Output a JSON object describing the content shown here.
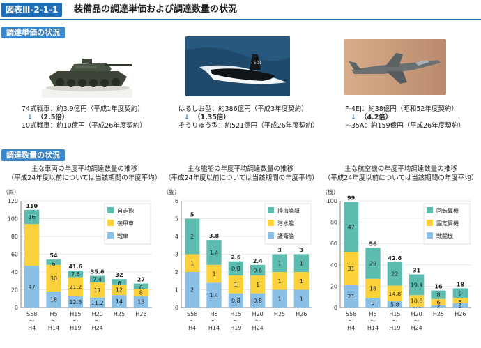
{
  "figure": {
    "tag": "図表Ⅲ-2-1-1",
    "title": "装備品の調達単価および調達数量の状況"
  },
  "unit_price_section": {
    "label": "調達単価の状況",
    "items": [
      {
        "line1": "74式戦車：約3.9億円（平成1年度契約）",
        "ratio": "（2.5倍）",
        "line2": "10式戦車：約10億円（平成26年度契約）"
      },
      {
        "line1": "はるしお型：約386億円（平成3年度契約）",
        "ratio": "（1.35倍）",
        "line2": "そうりゅう型：約521億円（平成26年度契約）"
      },
      {
        "line1": "F-4EJ：約38億円（昭和52年度契約）",
        "ratio": "（4.2倍）",
        "line2": "F-35A：約159億円（平成26年度契約）"
      }
    ],
    "arrow": "↓"
  },
  "quantity_section": {
    "label": "調達数量の状況"
  },
  "colors": {
    "teal": "#5dbcb0",
    "yellow": "#fbd13b",
    "blue": "#8ac0e6",
    "brand": "#1e6db5",
    "label_bg": "#3a86c8"
  },
  "chart_data": [
    {
      "type": "bar",
      "stacked": true,
      "title": "主な車両の年度平均調達数量の推移",
      "subtitle": "（平成24年度以前については当該期間の年度平均）",
      "ylabel": "（両）",
      "ylim": [
        0,
        120
      ],
      "yticks": [
        0,
        20,
        40,
        60,
        80,
        100,
        120
      ],
      "categories": [
        [
          "S58",
          "〜",
          "H4"
        ],
        [
          "H5",
          "〜",
          "H14"
        ],
        [
          "H15",
          "〜",
          "H19"
        ],
        [
          "H20",
          "〜",
          "H24"
        ],
        [
          "H25"
        ],
        [
          "H26"
        ]
      ],
      "totals": [
        "110",
        "54",
        "41.6",
        "35.6",
        "32",
        "27"
      ],
      "series": [
        {
          "name": "戦車",
          "color": "#8ac0e6",
          "values": [
            47,
            18,
            12.8,
            11.2,
            14,
            13
          ],
          "labels": [
            "47",
            "18",
            "12.8",
            "11.2",
            "14",
            "13"
          ]
        },
        {
          "name": "装甲車",
          "color": "#fbd13b",
          "values": [
            47,
            30,
            21.2,
            17,
            12,
            8
          ],
          "labels": [
            "",
            "30",
            "21.2",
            "17",
            "12",
            "8"
          ]
        },
        {
          "name": "自走砲",
          "color": "#5dbcb0",
          "values": [
            16,
            6,
            7.6,
            7.4,
            6,
            6
          ],
          "labels": [
            "16",
            "6",
            "7.6",
            "7.4",
            "6",
            "6"
          ]
        }
      ],
      "legend": [
        "自走砲",
        "装甲車",
        "戦車"
      ],
      "legend_position": "top-right"
    },
    {
      "type": "bar",
      "stacked": true,
      "title": "主な艦船の年度平均調達数量の推移",
      "subtitle": "（平成24年度以前については当該期間の年度平均）",
      "ylabel": "（隻）",
      "ylim": [
        0,
        6
      ],
      "yticks": [
        0,
        1,
        2,
        3,
        4,
        5,
        6
      ],
      "categories": [
        [
          "S58",
          "〜",
          "H4"
        ],
        [
          "H5",
          "〜",
          "H14"
        ],
        [
          "H15",
          "〜",
          "H19"
        ],
        [
          "H20",
          "〜",
          "H24"
        ],
        [
          "H25"
        ],
        [
          "H26"
        ]
      ],
      "totals": [
        "5",
        "3.8",
        "2.6",
        "2.4",
        "3",
        "3"
      ],
      "series": [
        {
          "name": "護衛艦",
          "color": "#8ac0e6",
          "values": [
            2,
            1.4,
            0.8,
            0.8,
            1,
            1
          ],
          "labels": [
            "2",
            "1.4",
            "0.8",
            "0.8",
            "1",
            "1"
          ]
        },
        {
          "name": "潜水艦",
          "color": "#fbd13b",
          "values": [
            1,
            1,
            1,
            1,
            1,
            1
          ],
          "labels": [
            "1",
            "1",
            "1",
            "1",
            "1",
            "1"
          ]
        },
        {
          "name": "掃海艦艇",
          "color": "#5dbcb0",
          "values": [
            2,
            1.4,
            0.8,
            0.6,
            1,
            1
          ],
          "labels": [
            "2",
            "1.4",
            "0.8",
            "0.6",
            "1",
            "1"
          ]
        }
      ],
      "legend": [
        "掃海艦艇",
        "潜水艦",
        "護衛艦"
      ],
      "legend_position": "top-right"
    },
    {
      "type": "bar",
      "stacked": true,
      "title": "主な航空機の年度平均調達数量の推移",
      "subtitle": "（平成24年度以前については当該期間の年度平均）",
      "ylabel": "（機）",
      "ylim": [
        0,
        100
      ],
      "yticks": [
        0,
        20,
        40,
        60,
        80,
        100
      ],
      "categories": [
        [
          "S58",
          "〜",
          "H4"
        ],
        [
          "H5",
          "〜",
          "H14"
        ],
        [
          "H15",
          "〜",
          "H19"
        ],
        [
          "H20",
          "〜",
          "H24"
        ],
        [
          "H25"
        ],
        [
          "H26"
        ]
      ],
      "totals": [
        "99",
        "56",
        "42.6",
        "31",
        "16",
        "18"
      ],
      "series": [
        {
          "name": "戦闘機",
          "color": "#8ac0e6",
          "values": [
            21,
            9,
            5.8,
            0.8,
            2,
            4
          ],
          "labels": [
            "21",
            "9",
            "5.8",
            "0.8",
            "2",
            "4"
          ]
        },
        {
          "name": "固定翼機",
          "color": "#fbd13b",
          "values": [
            31,
            18,
            14.8,
            10.8,
            6,
            5
          ],
          "labels": [
            "31",
            "18",
            "14.8",
            "10.8",
            "6",
            "5"
          ]
        },
        {
          "name": "回転翼機",
          "color": "#5dbcb0",
          "values": [
            47,
            29,
            22,
            19.4,
            8,
            9
          ],
          "labels": [
            "47",
            "29",
            "22",
            "19.4",
            "8",
            "9"
          ]
        }
      ],
      "legend": [
        "回転翼機",
        "固定翼機",
        "戦闘機"
      ],
      "legend_position": "top-right"
    }
  ]
}
